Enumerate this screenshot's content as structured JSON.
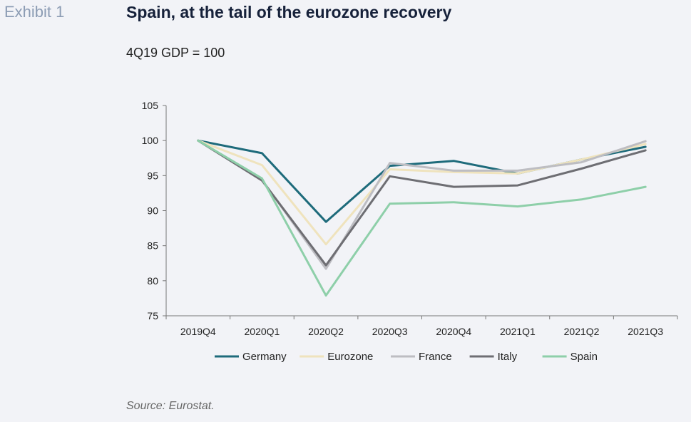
{
  "header": {
    "exhibit_label": "Exhibit 1",
    "title": "Spain, at the tail of the eurozone recovery",
    "subtitle": "4Q19 GDP = 100"
  },
  "footer": {
    "source": "Source: Eurostat."
  },
  "chart_data": {
    "type": "line",
    "title": "Spain, at the tail of the eurozone recovery",
    "subtitle": "4Q19 GDP = 100",
    "categories": [
      "2019Q4",
      "2020Q1",
      "2020Q2",
      "2020Q3",
      "2020Q4",
      "2021Q1",
      "2021Q2",
      "2021Q3"
    ],
    "ylim": [
      75,
      105
    ],
    "yticks": [
      75,
      80,
      85,
      90,
      95,
      100,
      105
    ],
    "grid": false,
    "legend_position": "bottom",
    "series": [
      {
        "name": "Germany",
        "color": "#1e6b7b",
        "values": [
          100,
          98.2,
          88.4,
          96.4,
          97.1,
          95.3,
          97.3,
          99.1
        ]
      },
      {
        "name": "Eurozone",
        "color": "#efe3bd",
        "values": [
          100,
          96.5,
          85.2,
          95.9,
          95.5,
          95.3,
          97.3,
          99.5
        ]
      },
      {
        "name": "France",
        "color": "#bdbdc2",
        "values": [
          100,
          94.4,
          81.7,
          96.8,
          95.7,
          95.7,
          96.9,
          99.9
        ]
      },
      {
        "name": "Italy",
        "color": "#6e6e73",
        "values": [
          100,
          94.3,
          82.2,
          94.9,
          93.4,
          93.6,
          96.0,
          98.6
        ]
      },
      {
        "name": "Spain",
        "color": "#8ecfa9",
        "values": [
          100,
          94.6,
          77.9,
          91.0,
          91.2,
          90.6,
          91.6,
          93.4
        ]
      }
    ]
  }
}
